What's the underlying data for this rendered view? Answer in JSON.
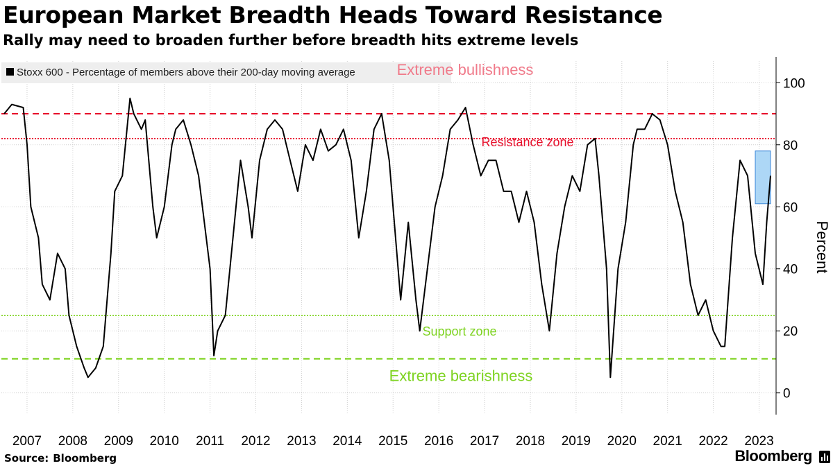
{
  "header": {
    "title": "European Market Breadth Heads Toward Resistance",
    "subtitle": "Rally may need to broaden further before breadth hits extreme levels"
  },
  "footer": {
    "source_label": "Source:",
    "source_value": "Bloomberg",
    "brand": "Bloomberg"
  },
  "colors": {
    "line": "#000000",
    "bullish": "#e8112d",
    "bullish_text_faded": "#f07a8a",
    "bearish": "#7ed321",
    "highlight_fill": "#9fd0f5",
    "highlight_stroke": "#3a86d8",
    "grid": "#d0d0d0",
    "legend_bg": "#eeeeee"
  },
  "chart_data": {
    "type": "line",
    "title": "European Market Breadth Heads Toward Resistance",
    "subtitle": "Rally may need to broaden further before breadth hits extreme levels",
    "xlabel": "",
    "ylabel": "Percent",
    "x_range": [
      "2007-01",
      "2023-10"
    ],
    "ylim": [
      -7,
      107
    ],
    "yticks": [
      0,
      20,
      40,
      60,
      80,
      100
    ],
    "xticks": [
      "2007",
      "2008",
      "2009",
      "2010",
      "2011",
      "2012",
      "2013",
      "2014",
      "2015",
      "2016",
      "2017",
      "2018",
      "2019",
      "2020",
      "2021",
      "2022",
      "2023"
    ],
    "grid": true,
    "legend": "top-left",
    "series": [
      {
        "name": "Stoxx 600 - Percentage of members above their 200-day moving average",
        "x": [
          "2007-01",
          "2007-03",
          "2007-06",
          "2007-07",
          "2007-08",
          "2007-10",
          "2007-11",
          "2008-01",
          "2008-03",
          "2008-05",
          "2008-06",
          "2008-08",
          "2008-10",
          "2008-11",
          "2009-01",
          "2009-03",
          "2009-05",
          "2009-06",
          "2009-08",
          "2009-10",
          "2009-11",
          "2010-01",
          "2010-02",
          "2010-04",
          "2010-05",
          "2010-07",
          "2010-09",
          "2010-10",
          "2010-12",
          "2011-02",
          "2011-04",
          "2011-05",
          "2011-07",
          "2011-08",
          "2011-09",
          "2011-11",
          "2012-01",
          "2012-03",
          "2012-05",
          "2012-06",
          "2012-08",
          "2012-10",
          "2012-12",
          "2013-02",
          "2013-04",
          "2013-06",
          "2013-08",
          "2013-10",
          "2013-12",
          "2014-02",
          "2014-04",
          "2014-06",
          "2014-08",
          "2014-10",
          "2014-12",
          "2015-02",
          "2015-04",
          "2015-06",
          "2015-08",
          "2015-09",
          "2015-11",
          "2016-01",
          "2016-02",
          "2016-04",
          "2016-06",
          "2016-08",
          "2016-10",
          "2016-12",
          "2017-02",
          "2017-04",
          "2017-06",
          "2017-08",
          "2017-10",
          "2017-12",
          "2018-02",
          "2018-04",
          "2018-06",
          "2018-08",
          "2018-10",
          "2018-12",
          "2019-02",
          "2019-04",
          "2019-06",
          "2019-08",
          "2019-10",
          "2019-12",
          "2020-01",
          "2020-03",
          "2020-04",
          "2020-06",
          "2020-08",
          "2020-10",
          "2020-11",
          "2021-01",
          "2021-03",
          "2021-05",
          "2021-07",
          "2021-09",
          "2021-11",
          "2022-01",
          "2022-03",
          "2022-05",
          "2022-07",
          "2022-09",
          "2022-10",
          "2022-12",
          "2023-02",
          "2023-04",
          "2023-06",
          "2023-08",
          "2023-09",
          "2023-10"
        ],
        "values": [
          90,
          93,
          92,
          80,
          60,
          50,
          35,
          30,
          45,
          40,
          25,
          15,
          8,
          5,
          8,
          15,
          45,
          65,
          70,
          95,
          90,
          85,
          88,
          60,
          50,
          60,
          80,
          85,
          88,
          80,
          70,
          60,
          40,
          12,
          20,
          25,
          50,
          75,
          60,
          50,
          75,
          85,
          88,
          85,
          75,
          65,
          80,
          75,
          85,
          78,
          80,
          85,
          75,
          50,
          65,
          85,
          90,
          75,
          45,
          30,
          55,
          30,
          20,
          40,
          60,
          70,
          85,
          88,
          92,
          80,
          70,
          75,
          75,
          65,
          65,
          55,
          65,
          55,
          35,
          20,
          45,
          60,
          70,
          65,
          80,
          82,
          70,
          40,
          5,
          40,
          55,
          80,
          85,
          85,
          90,
          88,
          80,
          65,
          55,
          35,
          25,
          30,
          20,
          15,
          15,
          50,
          75,
          70,
          45,
          35,
          55,
          70
        ]
      }
    ],
    "reference_lines": [
      {
        "label": "Extreme bullishness",
        "value": 90,
        "style": "dashed",
        "color": "#e8112d"
      },
      {
        "label": "Resistance zone",
        "value": 82,
        "style": "dotted",
        "color": "#e8112d"
      },
      {
        "label": "Support zone",
        "value": 25,
        "style": "dotted",
        "color": "#7ed321"
      },
      {
        "label": "Extreme bearishness",
        "value": 11,
        "style": "dashed",
        "color": "#7ed321"
      }
    ],
    "highlight": {
      "x": [
        "2023-06",
        "2023-10"
      ],
      "y": [
        61,
        78
      ]
    }
  }
}
